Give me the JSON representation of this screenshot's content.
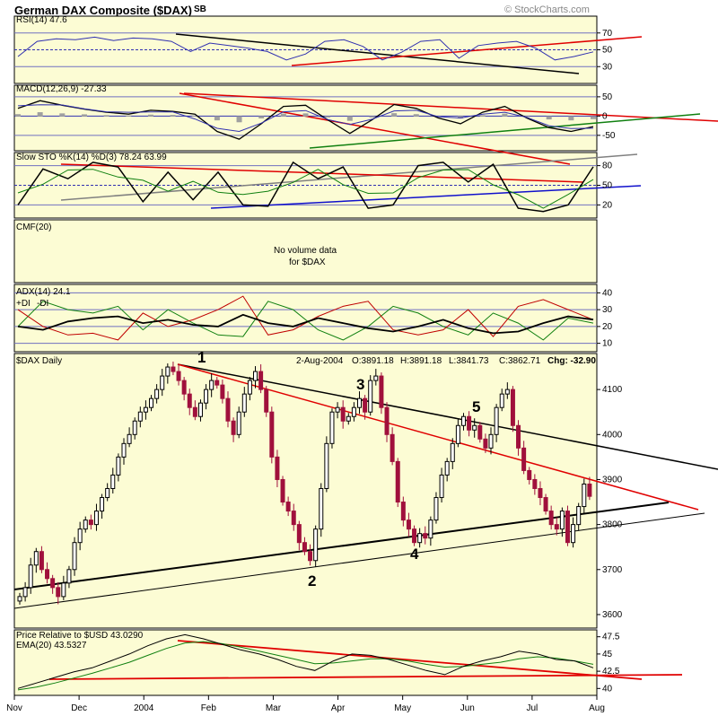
{
  "header": {
    "title": "German DAX Composite ($DAX)",
    "exchange": "SB",
    "watermark": "© StockCharts.com"
  },
  "colors": {
    "panel_bg": "#fcfcd4",
    "up": "#000000",
    "down": "#a0103c",
    "red_line": "#e00000",
    "black_line": "#000000",
    "blue_line": "#1010cc",
    "green_line": "#108010",
    "gray_line": "#808080"
  },
  "chart_data": [
    {
      "type": "line",
      "panel": "rsi",
      "title": "RSI(14) 47.6",
      "yticks": [
        70,
        50,
        30
      ],
      "ylim": [
        10,
        90
      ],
      "series": [
        {
          "name": "RSI(14)",
          "values": [
            42,
            60,
            63,
            62,
            65,
            61,
            64,
            63,
            60,
            48,
            58,
            55,
            52,
            48,
            38,
            45,
            60,
            62,
            54,
            38,
            47,
            60,
            62,
            40,
            55,
            58,
            60,
            52,
            38,
            42,
            47.6
          ]
        }
      ]
    },
    {
      "type": "line",
      "panel": "macd",
      "title": "MACD(12,26,9) -27.33",
      "yticks": [
        50,
        0,
        -50
      ],
      "ylim": [
        -90,
        80
      ],
      "series": [
        {
          "name": "MACD",
          "values": [
            20,
            40,
            28,
            18,
            10,
            5,
            15,
            12,
            5,
            -40,
            -60,
            -20,
            25,
            28,
            -10,
            -45,
            -10,
            30,
            20,
            -5,
            -20,
            10,
            25,
            -5,
            -30,
            -40,
            -27.33
          ]
        }
      ]
    },
    {
      "type": "line",
      "panel": "sto",
      "title": "Slow STO %K(14) %D(3) 78.24 63.99",
      "yticks": [
        80,
        50,
        20
      ],
      "ylim": [
        0,
        100
      ],
      "series": [
        {
          "name": "%K",
          "values": [
            20,
            75,
            60,
            85,
            78,
            25,
            70,
            28,
            70,
            20,
            18,
            85,
            60,
            78,
            15,
            20,
            80,
            85,
            55,
            82,
            15,
            10,
            20,
            78.24
          ]
        }
      ]
    },
    {
      "type": "line",
      "panel": "cmf",
      "title": "CMF(20)",
      "note_line1": "No volume data",
      "note_line2": "for $DAX"
    },
    {
      "type": "line",
      "panel": "adx",
      "title": "ADX(14) 24.1",
      "plus_di_label": "+DI",
      "minus_di_label": "-DI",
      "yticks": [
        40,
        30,
        20,
        10
      ],
      "ylim": [
        5,
        45
      ],
      "series": [
        {
          "name": "ADX(14)",
          "values": [
            20,
            18,
            23,
            25,
            26,
            22,
            24,
            21,
            20,
            27,
            22,
            20,
            25,
            22,
            19,
            17,
            20,
            24,
            19,
            16,
            17,
            22,
            26,
            24.1
          ]
        },
        {
          "name": "+DI",
          "values": [
            20,
            35,
            30,
            28,
            32,
            18,
            30,
            22,
            15,
            14,
            35,
            30,
            18,
            12,
            20,
            32,
            28,
            20,
            15,
            28,
            22,
            12,
            25,
            22
          ]
        },
        {
          "name": "-DI",
          "values": [
            30,
            20,
            15,
            16,
            12,
            28,
            20,
            24,
            30,
            38,
            15,
            18,
            26,
            32,
            35,
            18,
            15,
            18,
            30,
            14,
            32,
            36,
            30,
            24
          ]
        }
      ]
    },
    {
      "type": "candlestick",
      "panel": "price",
      "title": "$DAX Daily",
      "quote": "2-Aug-2004",
      "open_lbl": "O:3891.18",
      "high_lbl": "H:3891.18",
      "low_lbl": "L:3841.73",
      "close_lbl": "C:3862.71",
      "change_lbl": "Chg: -32.90",
      "yticks": [
        4100,
        4000,
        3900,
        3800,
        3700,
        3600
      ],
      "ylim": [
        3570,
        4180
      ],
      "waves": [
        "1",
        "2",
        "3",
        "4",
        "5"
      ],
      "closes": [
        3640,
        3660,
        3710,
        3740,
        3700,
        3680,
        3660,
        3640,
        3670,
        3700,
        3760,
        3790,
        3810,
        3800,
        3830,
        3860,
        3880,
        3910,
        3950,
        3980,
        4000,
        4030,
        4050,
        4060,
        4080,
        4100,
        4130,
        4150,
        4140,
        4120,
        4090,
        4060,
        4040,
        4070,
        4100,
        4120,
        4110,
        4080,
        4030,
        4000,
        4050,
        4090,
        4120,
        4140,
        4100,
        4050,
        3950,
        3900,
        3850,
        3830,
        3800,
        3760,
        3740,
        3720,
        3790,
        3880,
        3980,
        4050,
        4060,
        4030,
        4040,
        4060,
        4080,
        4050,
        4120,
        4130,
        4060,
        4000,
        3940,
        3850,
        3810,
        3790,
        3760,
        3780,
        3770,
        3810,
        3860,
        3910,
        3940,
        3980,
        4020,
        4040,
        4010,
        4020,
        3990,
        3970,
        4000,
        4060,
        4090,
        4100,
        4020,
        3970,
        3920,
        3900,
        3880,
        3860,
        3830,
        3800,
        3790,
        3830,
        3760,
        3800,
        3840,
        3890,
        3862.71
      ]
    },
    {
      "type": "line",
      "panel": "relative",
      "title": "Price Relative to $USD 43.0290",
      "ema_label": "EMA(20) 43.5327",
      "yticks": [
        47.5,
        45.0,
        42.5,
        40.0
      ],
      "ylim": [
        39,
        48.5
      ],
      "series": [
        {
          "name": "Price Relative to $USD",
          "values": [
            40.0,
            40.8,
            41.6,
            42.4,
            43.0,
            44.0,
            45.0,
            46.2,
            47.2,
            47.8,
            47.2,
            46.4,
            45.6,
            45.0,
            44.2,
            43.2,
            42.6,
            44.0,
            45.0,
            44.8,
            44.2,
            43.4,
            42.6,
            42.0,
            43.2,
            44.0,
            44.6,
            45.4,
            45.0,
            44.2,
            44.0,
            43.0
          ]
        },
        {
          "name": "EMA(20)",
          "values": [
            39.8,
            40.2,
            40.8,
            41.5,
            42.2,
            43.0,
            43.8,
            44.8,
            45.8,
            46.6,
            46.8,
            46.5,
            46.0,
            45.4,
            44.8,
            44.2,
            43.6,
            43.7,
            44.0,
            44.3,
            44.3,
            44.0,
            43.5,
            43.1,
            43.2,
            43.5,
            43.8,
            44.3,
            44.6,
            44.4,
            44.0,
            43.5
          ]
        }
      ]
    }
  ],
  "xaxis": {
    "labels": [
      "Nov",
      "Dec",
      "2004",
      "Feb",
      "Mar",
      "Apr",
      "May",
      "Jun",
      "Jul",
      "Aug"
    ]
  }
}
